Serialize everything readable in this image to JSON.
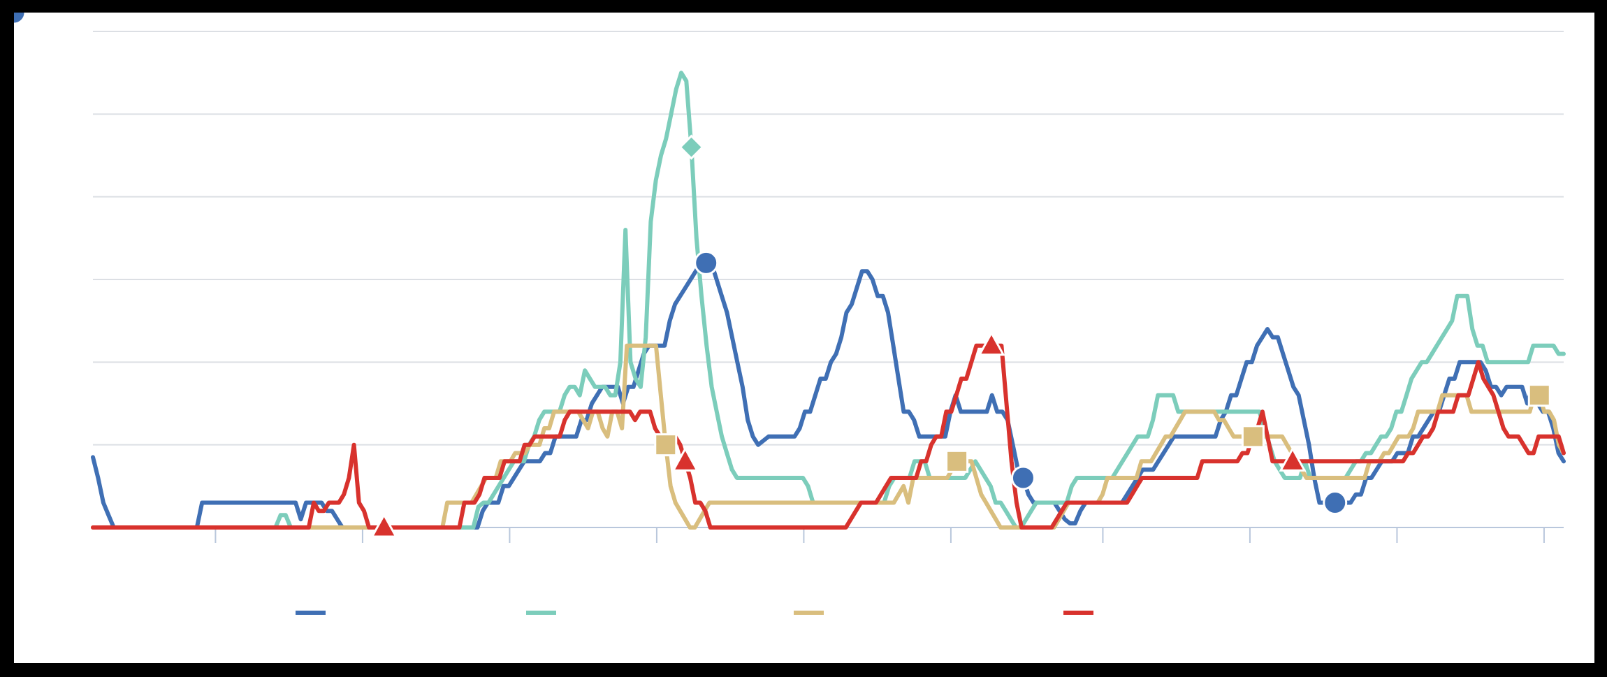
{
  "chart_data": {
    "type": "line",
    "title": "",
    "xlabel": "",
    "ylabel": "",
    "xlim": [
      0,
      300
    ],
    "ylim": [
      0,
      6
    ],
    "grid": true,
    "legend_position": "bottom",
    "x_ticks": [
      25,
      55,
      85,
      115,
      145,
      175,
      206,
      236,
      266,
      296
    ],
    "y_gridlines": [
      0,
      1,
      2,
      3,
      4,
      5,
      6
    ],
    "series": [
      {
        "color": "#3f6fb4",
        "marker": "circle",
        "marker_indices": [
          118,
          179,
          239,
          298
        ],
        "values": [
          0.85,
          0.6,
          0.3,
          0.15,
          0,
          0,
          0,
          0,
          0,
          0,
          0,
          0,
          0,
          0,
          0,
          0,
          0,
          0,
          0,
          0,
          0,
          0.3,
          0.3,
          0.3,
          0.3,
          0.3,
          0.3,
          0.3,
          0.3,
          0.3,
          0.3,
          0.3,
          0.3,
          0.3,
          0.3,
          0.3,
          0.3,
          0.3,
          0.3,
          0.3,
          0.1,
          0.3,
          0.3,
          0.3,
          0.3,
          0.2,
          0.2,
          0.1,
          0,
          0,
          0,
          0,
          0,
          0,
          0,
          0,
          0,
          0,
          0,
          0,
          0,
          0,
          0,
          0,
          0,
          0,
          0,
          0,
          0,
          0,
          0,
          0,
          0,
          0,
          0,
          0.2,
          0.3,
          0.3,
          0.3,
          0.5,
          0.5,
          0.6,
          0.7,
          0.8,
          0.8,
          0.8,
          0.8,
          0.9,
          0.9,
          1.1,
          1.1,
          1.1,
          1.1,
          1.1,
          1.3,
          1.3,
          1.5,
          1.6,
          1.7,
          1.7,
          1.7,
          1.7,
          1.5,
          1.7,
          1.7,
          1.9,
          2.1,
          2.2,
          2.2,
          2.2,
          2.2,
          2.5,
          2.7,
          2.8,
          2.9,
          3.0,
          3.1,
          3.2,
          3.2,
          3.2,
          3.0,
          2.8,
          2.6,
          2.3,
          2.0,
          1.7,
          1.3,
          1.1,
          1.0,
          1.05,
          1.1,
          1.1,
          1.1,
          1.1,
          1.1,
          1.1,
          1.2,
          1.4,
          1.4,
          1.6,
          1.8,
          1.8,
          2.0,
          2.1,
          2.3,
          2.6,
          2.7,
          2.9,
          3.1,
          3.1,
          3.0,
          2.8,
          2.8,
          2.6,
          2.2,
          1.8,
          1.4,
          1.4,
          1.3,
          1.1,
          1.1,
          1.1,
          1.1,
          1.1,
          1.1,
          1.4,
          1.6,
          1.4,
          1.4,
          1.4,
          1.4,
          1.4,
          1.4,
          1.6,
          1.4,
          1.4,
          1.3,
          1.0,
          0.7,
          0.6,
          0.4,
          0.3,
          0.3,
          0.3,
          0.3,
          0.3,
          0.2,
          0.1,
          0.05,
          0.05,
          0.2,
          0.3,
          0.3,
          0.3,
          0.3,
          0.3,
          0.3,
          0.3,
          0.3,
          0.4,
          0.5,
          0.6,
          0.7,
          0.7,
          0.7,
          0.8,
          0.9,
          1.0,
          1.1,
          1.1,
          1.1,
          1.1,
          1.1,
          1.1,
          1.1,
          1.1,
          1.1,
          1.3,
          1.4,
          1.6,
          1.6,
          1.8,
          2.0,
          2.0,
          2.2,
          2.3,
          2.4,
          2.3,
          2.3,
          2.1,
          1.9,
          1.7,
          1.6,
          1.3,
          1.0,
          0.6,
          0.3,
          0.3,
          0.3,
          0.3,
          0.3,
          0.3,
          0.3,
          0.4,
          0.4,
          0.6,
          0.6,
          0.7,
          0.8,
          0.8,
          0.8,
          0.9,
          0.9,
          0.9,
          1.1,
          1.1,
          1.2,
          1.3,
          1.4,
          1.4,
          1.6,
          1.8,
          1.8,
          2.0,
          2.0,
          2.0,
          2.0,
          2.0,
          1.9,
          1.7,
          1.7,
          1.6,
          1.7,
          1.7,
          1.7,
          1.7,
          1.5,
          1.7,
          1.5,
          1.4,
          1.4,
          1.2,
          0.9,
          0.8
        ]
      },
      {
        "color": "#7ccdbb",
        "marker": "diamond",
        "marker_indices": [
          118,
          298
        ],
        "values": [
          0,
          0,
          0,
          0,
          0,
          0,
          0,
          0,
          0,
          0,
          0,
          0,
          0,
          0,
          0,
          0,
          0,
          0,
          0,
          0,
          0,
          0,
          0,
          0,
          0,
          0,
          0,
          0,
          0,
          0,
          0,
          0,
          0,
          0,
          0,
          0,
          0,
          0.15,
          0.15,
          0,
          0,
          0,
          0,
          0,
          0,
          0,
          0,
          0,
          0,
          0,
          0,
          0,
          0,
          0,
          0,
          0,
          0,
          0,
          0,
          0,
          0,
          0,
          0,
          0,
          0,
          0,
          0,
          0,
          0,
          0,
          0,
          0,
          0,
          0,
          0,
          0,
          0.25,
          0.3,
          0.3,
          0.4,
          0.5,
          0.6,
          0.7,
          0.8,
          0.8,
          0.8,
          1.0,
          1.1,
          1.3,
          1.4,
          1.4,
          1.4,
          1.4,
          1.6,
          1.7,
          1.7,
          1.6,
          1.9,
          1.8,
          1.7,
          1.7,
          1.7,
          1.6,
          1.6,
          2.0,
          3.6,
          2.0,
          1.8,
          1.7,
          2.3,
          3.7,
          4.2,
          4.5,
          4.7,
          5.0,
          5.3,
          5.5,
          5.4,
          4.6,
          3.5,
          2.8,
          2.2,
          1.7,
          1.4,
          1.1,
          0.9,
          0.7,
          0.6,
          0.6,
          0.6,
          0.6,
          0.6,
          0.6,
          0.6,
          0.6,
          0.6,
          0.6,
          0.6,
          0.6,
          0.6,
          0.6,
          0.5,
          0.3,
          0.3,
          0.3,
          0.3,
          0.3,
          0.3,
          0.3,
          0.3,
          0.3,
          0.3,
          0.3,
          0.3,
          0.3,
          0.3,
          0.3,
          0.5,
          0.6,
          0.6,
          0.6,
          0.6,
          0.8,
          0.8,
          0.8,
          0.6,
          0.6,
          0.6,
          0.6,
          0.6,
          0.6,
          0.6,
          0.6,
          0.7,
          0.8,
          0.7,
          0.6,
          0.5,
          0.3,
          0.3,
          0.2,
          0.1,
          0,
          0,
          0.1,
          0.2,
          0.3,
          0.3,
          0.3,
          0.3,
          0.3,
          0.3,
          0.3,
          0.5,
          0.6,
          0.6,
          0.6,
          0.6,
          0.6,
          0.6,
          0.6,
          0.6,
          0.7,
          0.8,
          0.9,
          1.0,
          1.1,
          1.1,
          1.1,
          1.3,
          1.6,
          1.6,
          1.6,
          1.6,
          1.4,
          1.4,
          1.4,
          1.4,
          1.4,
          1.4,
          1.4,
          1.4,
          1.4,
          1.4,
          1.4,
          1.4,
          1.4,
          1.4,
          1.4,
          1.4,
          1.4,
          1.2,
          1.0,
          0.8,
          0.7,
          0.6,
          0.6,
          0.6,
          0.6,
          0.8,
          0.6,
          0.6,
          0.6,
          0.6,
          0.6,
          0.6,
          0.6,
          0.6,
          0.7,
          0.8,
          0.8,
          0.9,
          0.9,
          1.0,
          1.1,
          1.1,
          1.2,
          1.4,
          1.4,
          1.6,
          1.8,
          1.9,
          2.0,
          2.0,
          2.1,
          2.2,
          2.3,
          2.4,
          2.5,
          2.8,
          2.8,
          2.8,
          2.4,
          2.2,
          2.2,
          2.0,
          2.0,
          2.0,
          2.0,
          2.0,
          2.0,
          2.0,
          2.0,
          2.0,
          2.2,
          2.2,
          2.2,
          2.2,
          2.2,
          2.1,
          2.1
        ]
      },
      {
        "color": "#d9be7e",
        "marker": "square",
        "marker_indices": [
          118,
          178,
          239,
          298
        ],
        "values": [
          0,
          0,
          0,
          0,
          0,
          0,
          0,
          0,
          0,
          0,
          0,
          0,
          0,
          0,
          0,
          0,
          0,
          0,
          0,
          0,
          0,
          0,
          0,
          0,
          0,
          0,
          0,
          0,
          0,
          0,
          0,
          0,
          0,
          0,
          0,
          0,
          0,
          0,
          0,
          0,
          0,
          0,
          0,
          0,
          0,
          0,
          0,
          0,
          0,
          0,
          0,
          0,
          0,
          0,
          0,
          0,
          0,
          0,
          0,
          0,
          0,
          0,
          0,
          0,
          0,
          0,
          0,
          0,
          0,
          0,
          0,
          0,
          0,
          0.3,
          0.3,
          0.3,
          0.3,
          0.3,
          0.3,
          0.4,
          0.5,
          0.6,
          0.6,
          0.6,
          0.8,
          0.8,
          0.8,
          0.9,
          0.9,
          0.9,
          1.0,
          1.0,
          1.0,
          1.2,
          1.2,
          1.4,
          1.4,
          1.4,
          1.4,
          1.4,
          1.4,
          1.3,
          1.2,
          1.4,
          1.4,
          1.2,
          1.1,
          1.4,
          1.4,
          1.2,
          2.2,
          2.2,
          2.2,
          2.2,
          2.2,
          2.2,
          2.2,
          1.6,
          1.0,
          0.5,
          0.3,
          0.2,
          0.1,
          0,
          0,
          0.1,
          0.2,
          0.3,
          0.3,
          0.3,
          0.3,
          0.3,
          0.3,
          0.3,
          0.3,
          0.3,
          0.3,
          0.3,
          0.3,
          0.3,
          0.3,
          0.3,
          0.3,
          0.3,
          0.3,
          0.3,
          0.3,
          0.3,
          0.3,
          0.3,
          0.3,
          0.3,
          0.3,
          0.3,
          0.3,
          0.3,
          0.3,
          0.3,
          0.3,
          0.3,
          0.3,
          0.3,
          0.3,
          0.3,
          0.3,
          0.3,
          0.4,
          0.5,
          0.3,
          0.6,
          0.6,
          0.6,
          0.6,
          0.6,
          0.6,
          0.6,
          0.6,
          0.7,
          0.8,
          0.8,
          0.8,
          0.8,
          0.6,
          0.4,
          0.3,
          0.2,
          0.1,
          0,
          0,
          0,
          0,
          0,
          0,
          0,
          0,
          0,
          0,
          0,
          0,
          0.1,
          0.2,
          0.3,
          0.3,
          0.3,
          0.3,
          0.3,
          0.3,
          0.3,
          0.4,
          0.6,
          0.6,
          0.6,
          0.6,
          0.6,
          0.6,
          0.6,
          0.8,
          0.8,
          0.8,
          0.9,
          1.0,
          1.1,
          1.1,
          1.2,
          1.3,
          1.4,
          1.4,
          1.4,
          1.4,
          1.4,
          1.4,
          1.4,
          1.3,
          1.3,
          1.2,
          1.1,
          1.1,
          1.1,
          1.1,
          1.1,
          1.1,
          1.1,
          1.1,
          1.1,
          1.1,
          1.1,
          1.0,
          0.9,
          0.8,
          0.7,
          0.6,
          0.6,
          0.6,
          0.6,
          0.6,
          0.6,
          0.6,
          0.6,
          0.6,
          0.6,
          0.6,
          0.6,
          0.6,
          0.8,
          0.8,
          0.8,
          0.9,
          0.9,
          1.0,
          1.1,
          1.1,
          1.1,
          1.2,
          1.4,
          1.4,
          1.4,
          1.4,
          1.4,
          1.6,
          1.6,
          1.6,
          1.6,
          1.6,
          1.6,
          1.4,
          1.4,
          1.4,
          1.4,
          1.4,
          1.4,
          1.4,
          1.4,
          1.4,
          1.4,
          1.4,
          1.4,
          1.4,
          1.6,
          1.6,
          1.4,
          1.4,
          1.3,
          1.0,
          0.9
        ]
      },
      {
        "color": "#d8322d",
        "marker": "triangle",
        "marker_indices": [
          58,
          118,
          179,
          239,
          298
        ],
        "values": [
          0,
          0,
          0,
          0,
          0,
          0,
          0,
          0,
          0,
          0,
          0,
          0,
          0,
          0,
          0,
          0,
          0,
          0,
          0,
          0,
          0,
          0,
          0,
          0,
          0,
          0,
          0,
          0,
          0,
          0,
          0,
          0,
          0,
          0,
          0,
          0,
          0,
          0,
          0,
          0,
          0,
          0,
          0,
          0,
          0.3,
          0.2,
          0.2,
          0.3,
          0.3,
          0.3,
          0.4,
          0.6,
          1.0,
          0.3,
          0.2,
          0,
          0,
          0,
          0,
          0,
          0,
          0,
          0,
          0,
          0,
          0,
          0,
          0,
          0,
          0,
          0,
          0,
          0,
          0,
          0.3,
          0.3,
          0.3,
          0.4,
          0.6,
          0.6,
          0.6,
          0.6,
          0.8,
          0.8,
          0.8,
          0.8,
          1.0,
          1.0,
          1.1,
          1.1,
          1.1,
          1.1,
          1.1,
          1.1,
          1.3,
          1.4,
          1.4,
          1.4,
          1.4,
          1.4,
          1.4,
          1.4,
          1.4,
          1.4,
          1.4,
          1.4,
          1.4,
          1.4,
          1.3,
          1.4,
          1.4,
          1.4,
          1.2,
          1.1,
          1.1,
          1.1,
          1.1,
          1.0,
          0.8,
          0.6,
          0.3,
          0.3,
          0.2,
          0,
          0,
          0,
          0,
          0,
          0,
          0,
          0,
          0,
          0,
          0,
          0,
          0,
          0,
          0,
          0,
          0,
          0,
          0,
          0,
          0,
          0,
          0,
          0,
          0,
          0,
          0,
          0,
          0.1,
          0.2,
          0.3,
          0.3,
          0.3,
          0.3,
          0.4,
          0.5,
          0.6,
          0.6,
          0.6,
          0.6,
          0.6,
          0.6,
          0.8,
          0.8,
          1.0,
          1.1,
          1.1,
          1.4,
          1.4,
          1.6,
          1.8,
          1.8,
          2.0,
          2.2,
          2.2,
          2.2,
          2.2,
          2.2,
          2.2,
          1.5,
          0.8,
          0.3,
          0,
          0,
          0,
          0,
          0,
          0,
          0,
          0.1,
          0.2,
          0.3,
          0.3,
          0.3,
          0.3,
          0.3,
          0.3,
          0.3,
          0.3,
          0.3,
          0.3,
          0.3,
          0.3,
          0.3,
          0.4,
          0.5,
          0.6,
          0.6,
          0.6,
          0.6,
          0.6,
          0.6,
          0.6,
          0.6,
          0.6,
          0.6,
          0.6,
          0.6,
          0.8,
          0.8,
          0.8,
          0.8,
          0.8,
          0.8,
          0.8,
          0.8,
          0.9,
          0.9,
          1.1,
          1.2,
          1.4,
          1.1,
          0.8,
          0.8,
          0.8,
          0.8,
          0.8,
          0.8,
          0.8,
          0.8,
          0.8,
          0.8,
          0.8,
          0.8,
          0.8,
          0.8,
          0.8,
          0.8,
          0.8,
          0.8,
          0.8,
          0.8,
          0.8,
          0.8,
          0.8,
          0.8,
          0.8,
          0.8,
          0.8,
          0.9,
          0.9,
          1.0,
          1.1,
          1.1,
          1.2,
          1.4,
          1.4,
          1.4,
          1.4,
          1.6,
          1.6,
          1.6,
          1.8,
          2.0,
          1.8,
          1.7,
          1.6,
          1.4,
          1.2,
          1.1,
          1.1,
          1.1,
          1.0,
          0.9,
          0.9,
          1.1,
          1.1,
          1.1,
          1.1,
          1.1,
          0.9
        ]
      }
    ]
  }
}
